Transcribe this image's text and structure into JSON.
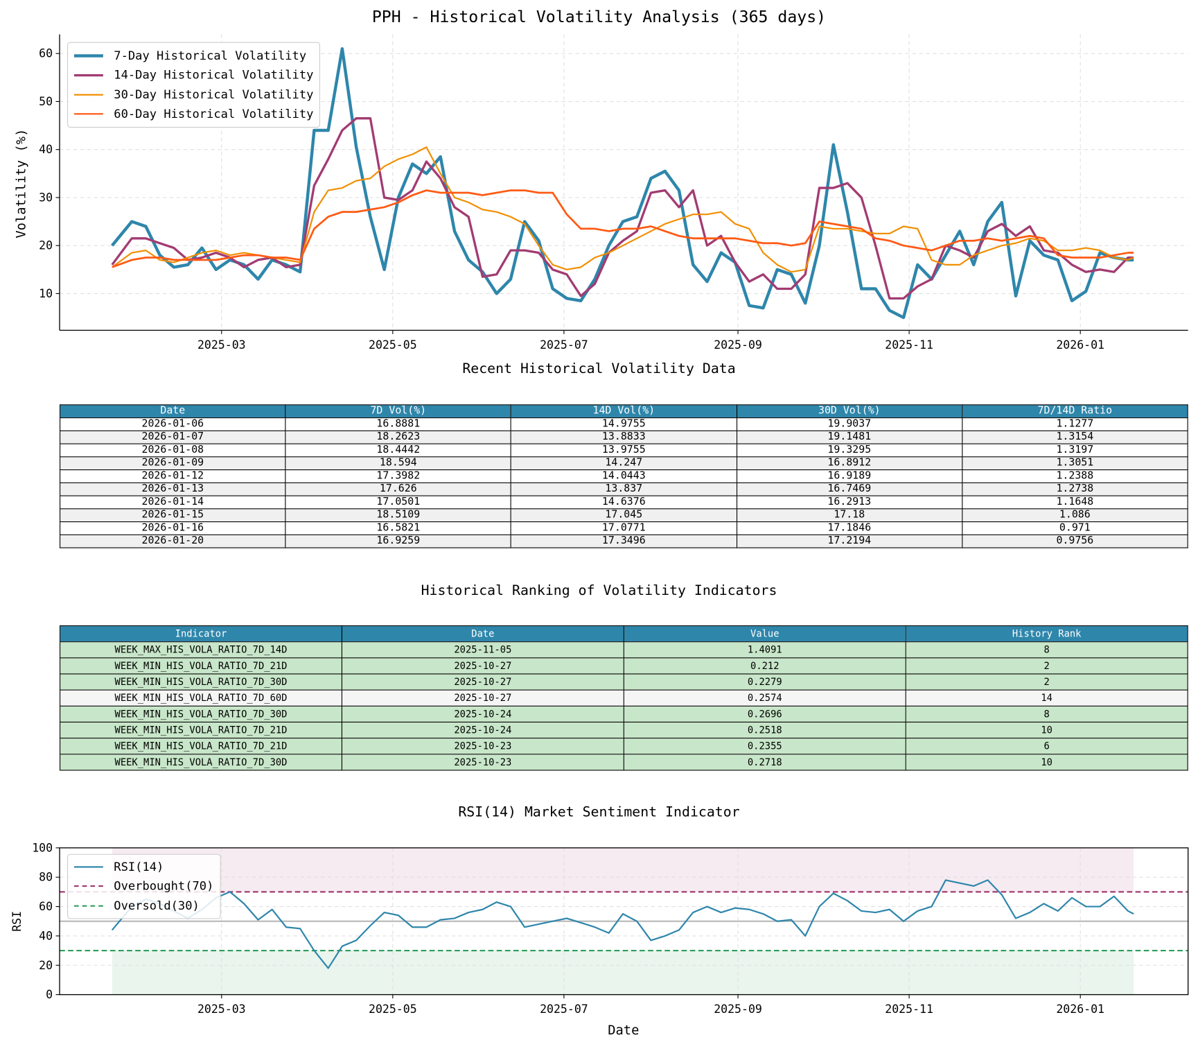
{
  "title": "PPH - Historical Volatility Analysis (365 days)",
  "chart_data": [
    {
      "type": "line",
      "title": "PPH - Historical Volatility Analysis (365 days)",
      "xlabel": "",
      "ylabel": "Volatility (%)",
      "ylim": [
        2.5,
        64
      ],
      "yticks": [
        10,
        20,
        30,
        40,
        50,
        60
      ],
      "xticks": [
        "2025-03",
        "2025-05",
        "2025-07",
        "2025-09",
        "2025-11",
        "2026-01"
      ],
      "grid": true,
      "legend": "top-left",
      "x": [
        "2025-01-21",
        "2025-01-28",
        "2025-02-02",
        "2025-02-07",
        "2025-02-12",
        "2025-02-17",
        "2025-02-22",
        "2025-02-27",
        "2025-03-04",
        "2025-03-09",
        "2025-03-14",
        "2025-03-19",
        "2025-03-24",
        "2025-03-29",
        "2025-04-03",
        "2025-04-08",
        "2025-04-13",
        "2025-04-18",
        "2025-04-23",
        "2025-04-28",
        "2025-05-03",
        "2025-05-08",
        "2025-05-13",
        "2025-05-18",
        "2025-05-23",
        "2025-05-28",
        "2025-06-02",
        "2025-06-07",
        "2025-06-12",
        "2025-06-17",
        "2025-06-22",
        "2025-06-27",
        "2025-07-02",
        "2025-07-07",
        "2025-07-12",
        "2025-07-17",
        "2025-07-22",
        "2025-07-27",
        "2025-08-01",
        "2025-08-06",
        "2025-08-11",
        "2025-08-16",
        "2025-08-21",
        "2025-08-26",
        "2025-08-31",
        "2025-09-05",
        "2025-09-10",
        "2025-09-15",
        "2025-09-20",
        "2025-09-25",
        "2025-09-30",
        "2025-10-05",
        "2025-10-10",
        "2025-10-15",
        "2025-10-20",
        "2025-10-25",
        "2025-10-30",
        "2025-11-04",
        "2025-11-09",
        "2025-11-14",
        "2025-11-19",
        "2025-11-24",
        "2025-11-29",
        "2025-12-04",
        "2025-12-09",
        "2025-12-14",
        "2025-12-19",
        "2025-12-24",
        "2025-12-29",
        "2026-01-03",
        "2026-01-08",
        "2026-01-13",
        "2026-01-18",
        "2026-01-20"
      ],
      "series": [
        {
          "name": "7-Day Historical Volatility",
          "color": "#2E86AB",
          "values": [
            20,
            25,
            24,
            18,
            15.5,
            16,
            19.5,
            15,
            17,
            16,
            13,
            17,
            16,
            14.5,
            44,
            44,
            61,
            40.5,
            26,
            15,
            30,
            37,
            35,
            38.5,
            23,
            17,
            14.5,
            10,
            13,
            25,
            21,
            11,
            9,
            8.5,
            13,
            20,
            25,
            26,
            34,
            35.5,
            31.5,
            16,
            12.5,
            18.5,
            16.5,
            7.5,
            7,
            15,
            14,
            8,
            20,
            41,
            27,
            11,
            11,
            6.5,
            5,
            16,
            13,
            18,
            23,
            16,
            25,
            29,
            9.5,
            21,
            18,
            17,
            8.5,
            10.5,
            18.5,
            17.5,
            17,
            17
          ]
        },
        {
          "name": "14-Day Historical Volatility",
          "color": "#A23B72",
          "values": [
            16,
            21.5,
            21.5,
            20.5,
            19.5,
            17,
            17.5,
            18.5,
            17.5,
            15.5,
            17,
            17.5,
            15.5,
            16,
            32.5,
            38,
            44,
            46.5,
            46.5,
            30,
            29.5,
            31.5,
            37.5,
            34,
            28,
            26,
            13.5,
            14,
            19,
            19,
            18.5,
            15,
            14,
            9.5,
            12,
            18.5,
            21,
            23,
            31,
            31.5,
            28,
            31.5,
            20,
            22,
            16.5,
            12.5,
            14,
            11,
            11,
            14,
            32,
            32,
            33,
            30,
            20,
            9,
            9,
            11.5,
            13,
            20,
            19,
            17.5,
            23,
            24.5,
            22,
            24,
            19,
            18.5,
            16,
            14.5,
            15,
            14.5,
            17.5,
            17.5
          ]
        },
        {
          "name": "30-Day Historical Volatility",
          "color": "#F18F01",
          "values": [
            15.5,
            18.5,
            19,
            17,
            16.5,
            17.5,
            18.5,
            19,
            18,
            18.5,
            18,
            17.5,
            17,
            16.5,
            27,
            31.5,
            32,
            33.5,
            34,
            36.5,
            38,
            39,
            40.5,
            35,
            30,
            29,
            27.5,
            27,
            26,
            24.5,
            20,
            16,
            15,
            15.5,
            17.5,
            18.5,
            20,
            21.5,
            23,
            24.5,
            25.5,
            26.5,
            26.5,
            27,
            24.5,
            23.5,
            18.5,
            16,
            14.5,
            15,
            24,
            23.5,
            23.5,
            23,
            22.5,
            22.5,
            24,
            23.5,
            17,
            16,
            16,
            18,
            19,
            20,
            20.5,
            21.5,
            21,
            19,
            19,
            19.5,
            19,
            17.5,
            17,
            17.5
          ]
        },
        {
          "name": "60-Day Historical Volatility",
          "color": "#FF5A14",
          "values": [
            15.5,
            17,
            17.5,
            17.5,
            17,
            17,
            17,
            17,
            17.5,
            18,
            18,
            17.5,
            17.5,
            17,
            23.5,
            26,
            27,
            27,
            27.5,
            28,
            29,
            30.5,
            31.5,
            31,
            31,
            31,
            30.5,
            31,
            31.5,
            31.5,
            31,
            31,
            26.5,
            23.5,
            23.5,
            23,
            23.5,
            23.5,
            24,
            23,
            22,
            21.5,
            21.5,
            21.5,
            21.5,
            21,
            20.5,
            20.5,
            20,
            20.5,
            25,
            24.5,
            24,
            23.5,
            21.5,
            21,
            20,
            19.5,
            19,
            20,
            21,
            21,
            21.5,
            21,
            21.5,
            22,
            21.5,
            18,
            17.5,
            17.5,
            17.5,
            18,
            18.5,
            18.5
          ]
        }
      ]
    },
    {
      "type": "line",
      "title": "RSI(14) Market Sentiment Indicator",
      "xlabel": "Date",
      "ylabel": "RSI",
      "ylim": [
        0,
        100
      ],
      "yticks": [
        0,
        20,
        40,
        60,
        80,
        100
      ],
      "xticks": [
        "2025-03",
        "2025-05",
        "2025-07",
        "2025-09",
        "2025-11",
        "2026-01"
      ],
      "grid": true,
      "legend": "top-left",
      "series": [
        {
          "name": "RSI(14)",
          "color": "#2E86AB",
          "values": [
            44,
            60,
            65,
            62,
            57,
            52,
            58,
            66,
            70,
            62,
            51,
            58,
            46,
            45,
            30,
            18,
            33,
            37,
            47,
            56,
            54,
            46,
            46,
            51,
            52,
            56,
            58,
            63,
            60,
            46,
            48,
            50,
            52,
            49,
            46,
            42,
            55,
            50,
            37,
            40,
            44,
            56,
            60,
            56,
            59,
            58,
            55,
            50,
            51,
            40,
            60,
            69,
            64,
            57,
            56,
            58,
            50,
            57,
            60,
            78,
            76,
            74,
            78,
            68,
            52,
            56,
            62,
            57,
            66,
            60,
            60,
            67,
            57,
            55
          ]
        }
      ],
      "reference_lines": [
        {
          "name": "Overbought(70)",
          "value": 70,
          "color": "#A23B72",
          "style": "dashed"
        },
        {
          "name": "Oversold(30)",
          "value": 30,
          "color": "#2E9E5B",
          "style": "dashed"
        },
        {
          "value": 50,
          "color": "#BBBBBB",
          "style": "solid"
        }
      ],
      "shaded_zones": [
        {
          "from": 70,
          "to": 100,
          "color": "#A23B72"
        },
        {
          "from": 0,
          "to": 30,
          "color": "#2E9E5B"
        }
      ]
    }
  ],
  "volatility_table": {
    "title": "Recent Historical Volatility Data",
    "columns": [
      "Date",
      "7D Vol(%)",
      "14D Vol(%)",
      "30D Vol(%)",
      "7D/14D Ratio"
    ],
    "rows": [
      [
        "2026-01-06",
        "16.8881",
        "14.9755",
        "19.9037",
        "1.1277"
      ],
      [
        "2026-01-07",
        "18.2623",
        "13.8833",
        "19.1481",
        "1.3154"
      ],
      [
        "2026-01-08",
        "18.4442",
        "13.9755",
        "19.3295",
        "1.3197"
      ],
      [
        "2026-01-09",
        "18.594",
        "14.247",
        "16.8912",
        "1.3051"
      ],
      [
        "2026-01-12",
        "17.3982",
        "14.0443",
        "16.9189",
        "1.2388"
      ],
      [
        "2026-01-13",
        "17.626",
        "13.837",
        "16.7469",
        "1.2738"
      ],
      [
        "2026-01-14",
        "17.0501",
        "14.6376",
        "16.2913",
        "1.1648"
      ],
      [
        "2026-01-15",
        "18.5109",
        "17.045",
        "17.18",
        "1.086"
      ],
      [
        "2026-01-16",
        "16.5821",
        "17.0771",
        "17.1846",
        "0.971"
      ],
      [
        "2026-01-20",
        "16.9259",
        "17.3496",
        "17.2194",
        "0.9756"
      ]
    ]
  },
  "ranking_table": {
    "title": "Historical Ranking of Volatility Indicators",
    "columns": [
      "Indicator",
      "Date",
      "Value",
      "History Rank"
    ],
    "rows": [
      {
        "cells": [
          "WEEK_MAX_HIS_VOLA_RATIO_7D_14D",
          "2025-11-05",
          "1.4091",
          "8"
        ],
        "highlighted": true
      },
      {
        "cells": [
          "WEEK_MIN_HIS_VOLA_RATIO_7D_21D",
          "2025-10-27",
          "0.212",
          "2"
        ],
        "highlighted": true
      },
      {
        "cells": [
          "WEEK_MIN_HIS_VOLA_RATIO_7D_30D",
          "2025-10-27",
          "0.2279",
          "2"
        ],
        "highlighted": true
      },
      {
        "cells": [
          "WEEK_MIN_HIS_VOLA_RATIO_7D_60D",
          "2025-10-27",
          "0.2574",
          "14"
        ],
        "highlighted": false
      },
      {
        "cells": [
          "WEEK_MIN_HIS_VOLA_RATIO_7D_30D",
          "2025-10-24",
          "0.2696",
          "8"
        ],
        "highlighted": true
      },
      {
        "cells": [
          "WEEK_MIN_HIS_VOLA_RATIO_7D_21D",
          "2025-10-24",
          "0.2518",
          "10"
        ],
        "highlighted": true
      },
      {
        "cells": [
          "WEEK_MIN_HIS_VOLA_RATIO_7D_21D",
          "2025-10-23",
          "0.2355",
          "6"
        ],
        "highlighted": true
      },
      {
        "cells": [
          "WEEK_MIN_HIS_VOLA_RATIO_7D_30D",
          "2025-10-23",
          "0.2718",
          "10"
        ],
        "highlighted": true
      }
    ],
    "highlight_color": "#C8E6C9"
  },
  "colors": {
    "header": "#2E86AB",
    "row_alt": "#F0F0F0"
  }
}
